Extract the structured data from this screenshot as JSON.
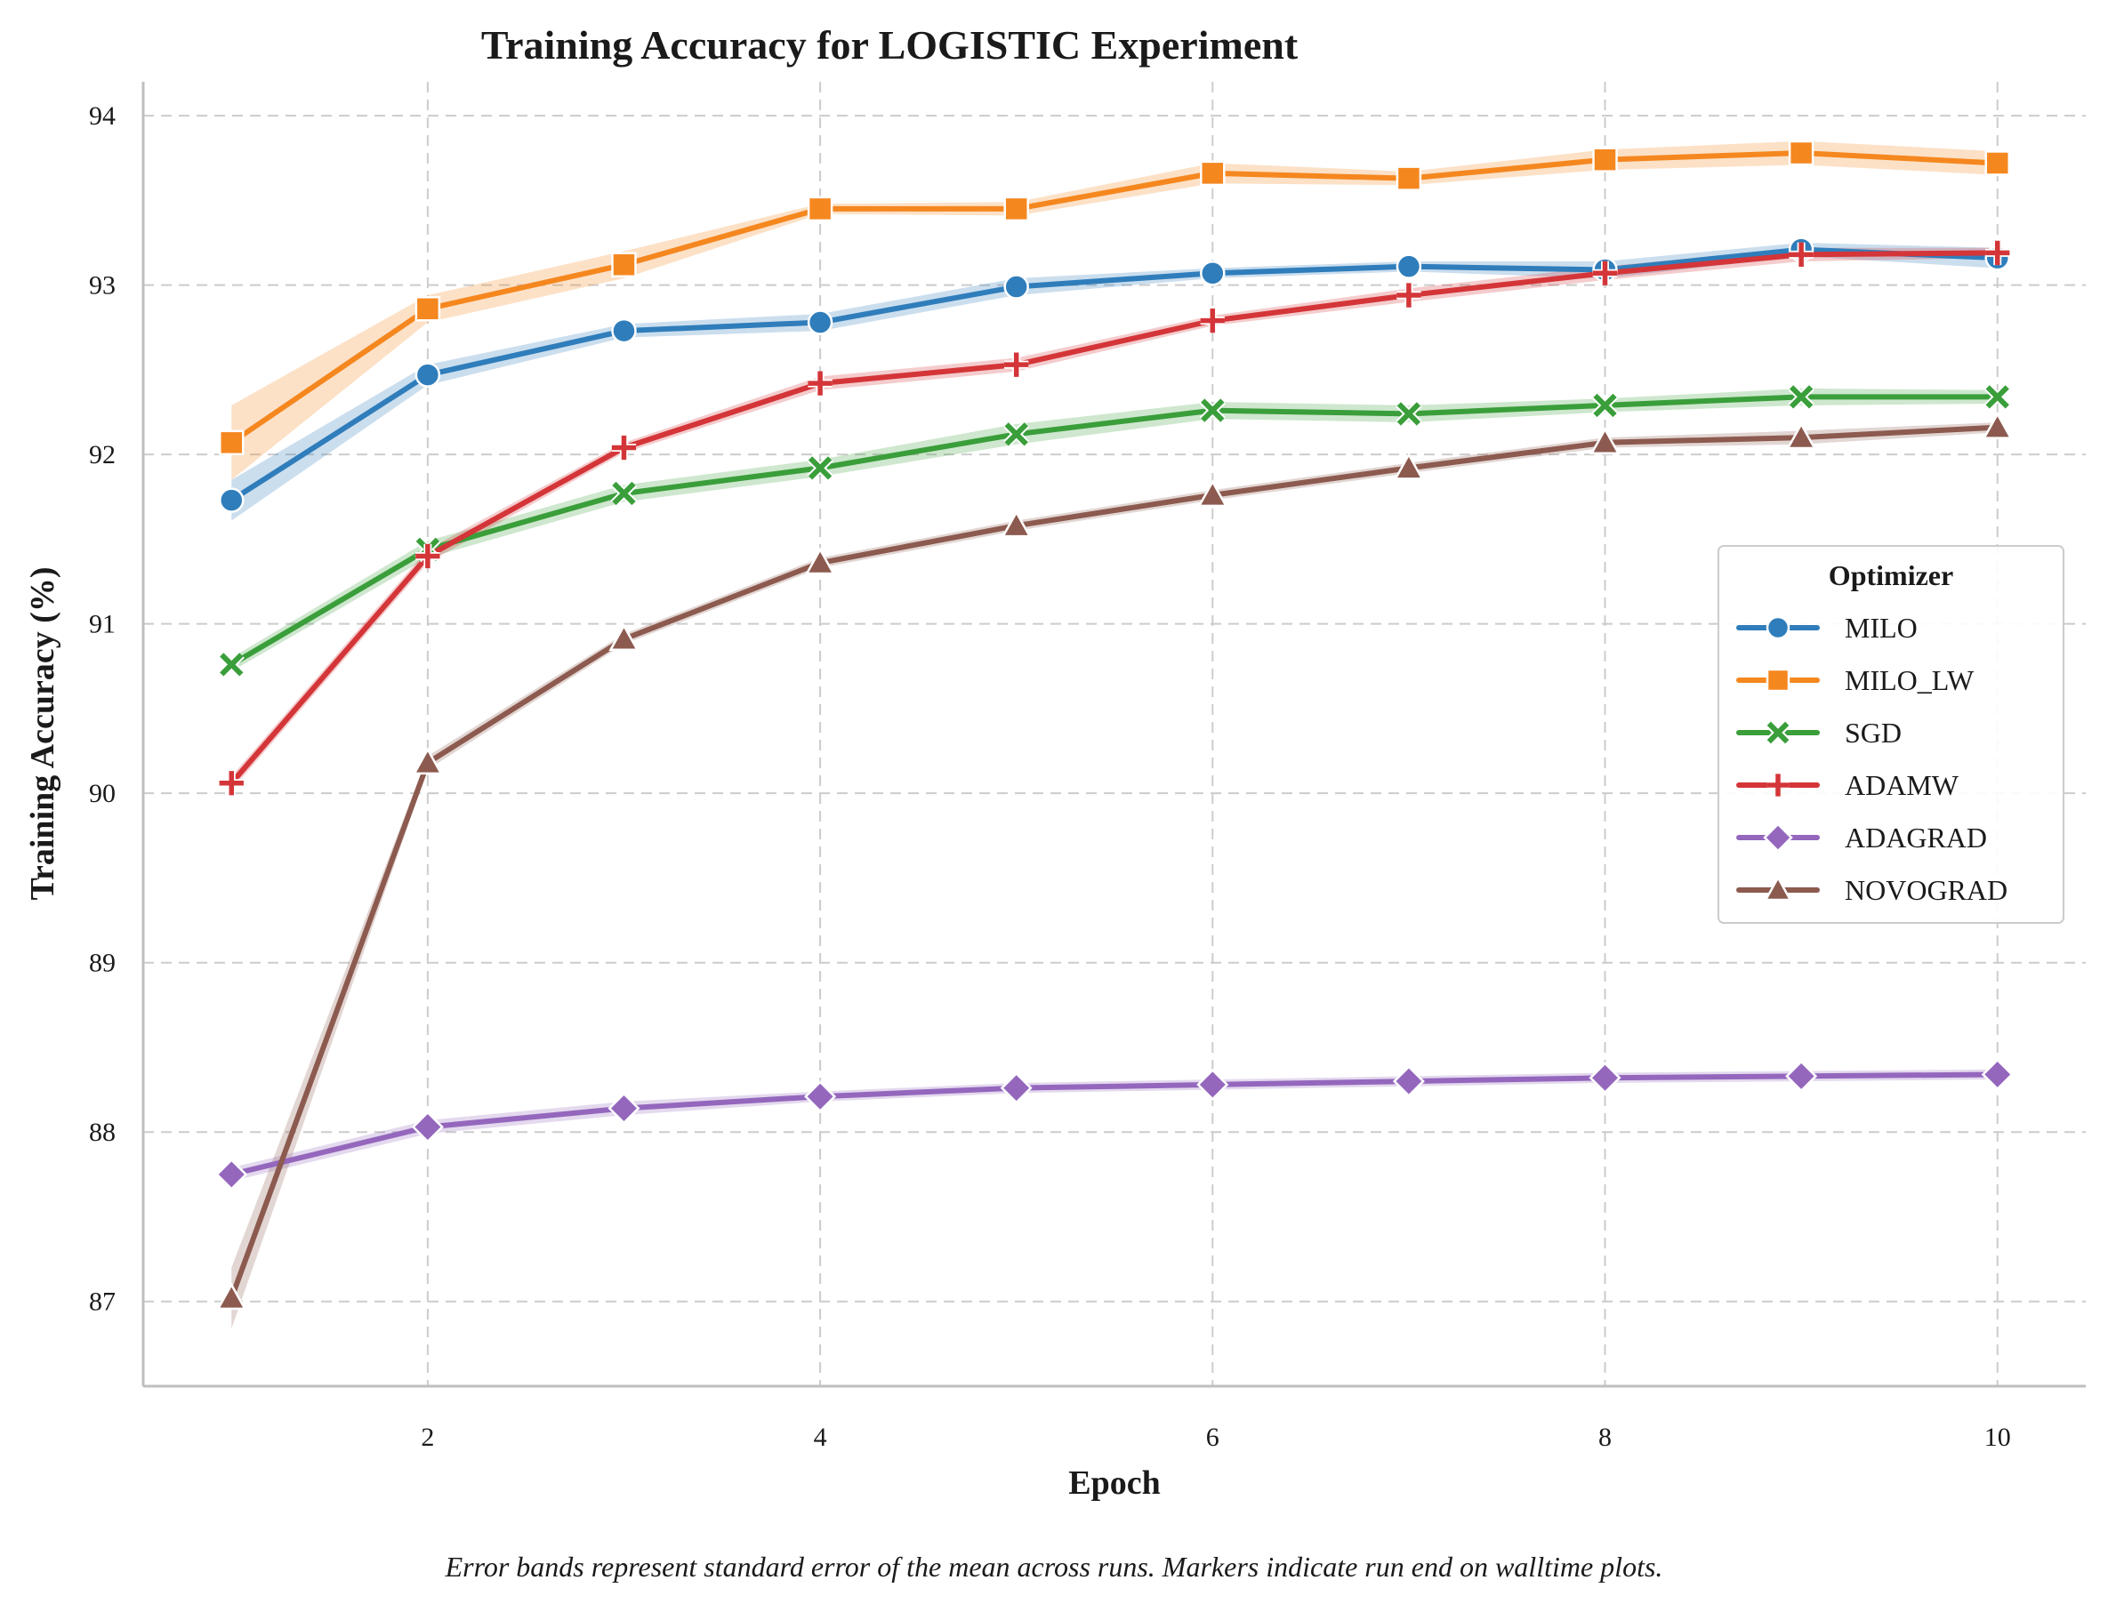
{
  "chart_data": {
    "type": "line",
    "title": "Training Accuracy for LOGISTIC Experiment",
    "xlabel": "Epoch",
    "ylabel": "Training Accuracy (%)",
    "xlim": [
      0.55,
      10.45
    ],
    "ylim": [
      86.5,
      94.2
    ],
    "xticks": [
      2,
      4,
      6,
      8,
      10
    ],
    "yticks": [
      87,
      88,
      89,
      90,
      91,
      92,
      93,
      94
    ],
    "grid": true,
    "legend": {
      "title": "Optimizer",
      "placement": "right"
    },
    "caption": "Error bands represent standard error of the mean across runs. Markers indicate run end on walltime plots.",
    "x": [
      1,
      2,
      3,
      4,
      5,
      6,
      7,
      8,
      9,
      10
    ],
    "series": [
      {
        "name": "MILO",
        "color": "#2f7dbb",
        "marker": "circle",
        "values": [
          91.73,
          92.47,
          92.73,
          92.78,
          92.99,
          93.07,
          93.11,
          93.09,
          93.21,
          93.16
        ],
        "error": [
          0.12,
          0.06,
          0.04,
          0.05,
          0.05,
          0.03,
          0.03,
          0.05,
          0.04,
          0.06
        ]
      },
      {
        "name": "MILO_LW",
        "color": "#f5871f",
        "marker": "square",
        "values": [
          92.07,
          92.86,
          93.12,
          93.45,
          93.45,
          93.66,
          93.63,
          93.74,
          93.78,
          93.72
        ],
        "error": [
          0.22,
          0.08,
          0.08,
          0.03,
          0.04,
          0.06,
          0.04,
          0.06,
          0.07,
          0.07
        ]
      },
      {
        "name": "SGD",
        "color": "#3a9e3a",
        "marker": "x",
        "values": [
          90.76,
          91.44,
          91.77,
          91.92,
          92.12,
          92.26,
          92.24,
          92.29,
          92.34,
          92.34
        ],
        "error": [
          0.04,
          0.05,
          0.05,
          0.05,
          0.06,
          0.05,
          0.05,
          0.04,
          0.05,
          0.04
        ]
      },
      {
        "name": "ADAMW",
        "color": "#d43538",
        "marker": "plus",
        "values": [
          90.06,
          91.4,
          92.04,
          92.42,
          92.53,
          92.79,
          92.94,
          93.07,
          93.18,
          93.19
        ],
        "error": [
          0.04,
          0.04,
          0.03,
          0.04,
          0.04,
          0.03,
          0.04,
          0.04,
          0.04,
          0.03
        ]
      },
      {
        "name": "ADAGRAD",
        "color": "#9467bd",
        "marker": "diamond",
        "values": [
          87.75,
          88.03,
          88.14,
          88.21,
          88.26,
          88.28,
          88.3,
          88.32,
          88.33,
          88.34
        ],
        "error": [
          0.04,
          0.04,
          0.04,
          0.03,
          0.03,
          0.03,
          0.03,
          0.03,
          0.03,
          0.03
        ]
      },
      {
        "name": "NOVOGRAD",
        "color": "#8c5a4f",
        "marker": "triangle",
        "values": [
          87.02,
          90.18,
          90.91,
          91.36,
          91.58,
          91.76,
          91.92,
          92.07,
          92.1,
          92.16
        ],
        "error": [
          0.18,
          0.04,
          0.03,
          0.03,
          0.03,
          0.03,
          0.03,
          0.03,
          0.04,
          0.03
        ]
      }
    ]
  }
}
